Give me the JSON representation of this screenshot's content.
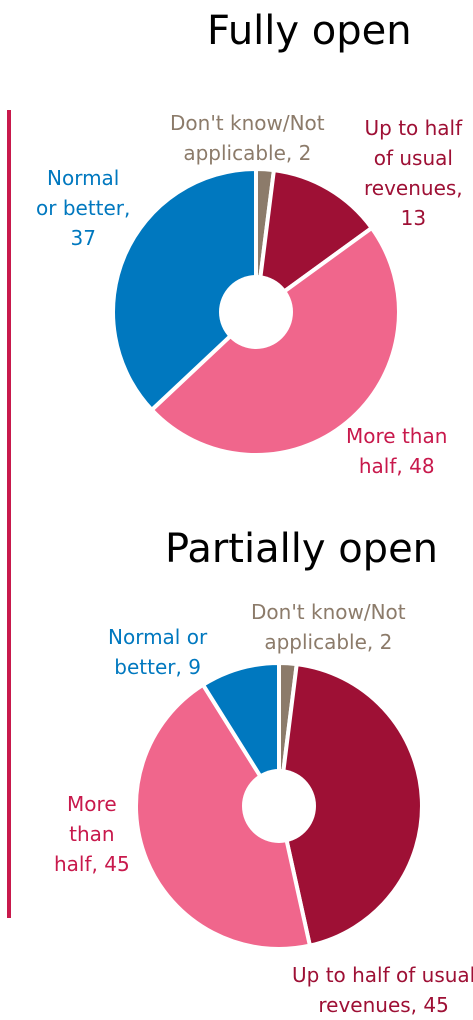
{
  "chart_data": [
    {
      "type": "pie",
      "title": "Fully open",
      "slices": [
        {
          "label": "Don't know/Not applicable",
          "value": 2,
          "color": "#8c7b6a"
        },
        {
          "label": "Up to half of usual revenues",
          "value": 13,
          "color": "#9e1035"
        },
        {
          "label": "More than half",
          "value": 48,
          "color": "#f0668c"
        },
        {
          "label": "Normal or better",
          "value": 37,
          "color": "#0078bf"
        }
      ],
      "labels": {
        "dk_line1": "Don't know/Not",
        "dk_line2": "applicable,  2",
        "up_line1": "Up to half",
        "up_line2": "of usual",
        "up_line3": "revenues,",
        "up_line4": "13",
        "more_line1": "More than",
        "more_line2": "half,  48",
        "normal_line1": "Normal",
        "normal_line2": "or better,",
        "normal_line3": "37"
      }
    },
    {
      "type": "pie",
      "title": "Partially  open",
      "slices": [
        {
          "label": "Don't know/Not applicable",
          "value": 2,
          "color": "#8c7b6a"
        },
        {
          "label": "Up to half of usual revenues",
          "value": 45,
          "color": "#9e1035"
        },
        {
          "label": "More than half",
          "value": 45,
          "color": "#f0668c"
        },
        {
          "label": "Normal or better",
          "value": 9,
          "color": "#0078bf"
        }
      ],
      "labels": {
        "dk_line1": "Don't know/Not",
        "dk_line2": "applicable, 2",
        "up_line1": "Up to half of usual",
        "up_line2": "revenues, 45",
        "more_line1": "More",
        "more_line2": "than",
        "more_line3": "half, 45",
        "normal_line1": "Normal or",
        "normal_line2": "better, 9"
      }
    }
  ]
}
